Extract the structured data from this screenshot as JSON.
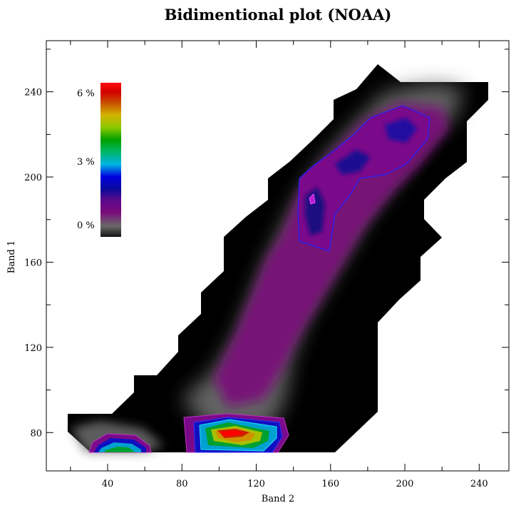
{
  "chart_data": {
    "type": "heatmap",
    "title": "Bidimentional plot (NOAA)",
    "xlabel": "Band 2",
    "ylabel": "Band 1",
    "xlim": [
      7,
      256
    ],
    "ylim": [
      62,
      264
    ],
    "xticks": [
      40,
      80,
      120,
      160,
      200,
      240
    ],
    "yticks": [
      80,
      120,
      160,
      200,
      240
    ],
    "colorbar": {
      "labels": [
        "0 %",
        "3 %",
        "6 %"
      ],
      "values": [
        0,
        3,
        6
      ],
      "placement": "top-left"
    },
    "colors": {
      "background": "#000000",
      "low": "#505050",
      "purple": "#800080",
      "blue": "#0000c8",
      "cyan": "#00c8e0",
      "green": "#00a000",
      "yellow": "#d8d800",
      "red": "#e00000"
    }
  }
}
